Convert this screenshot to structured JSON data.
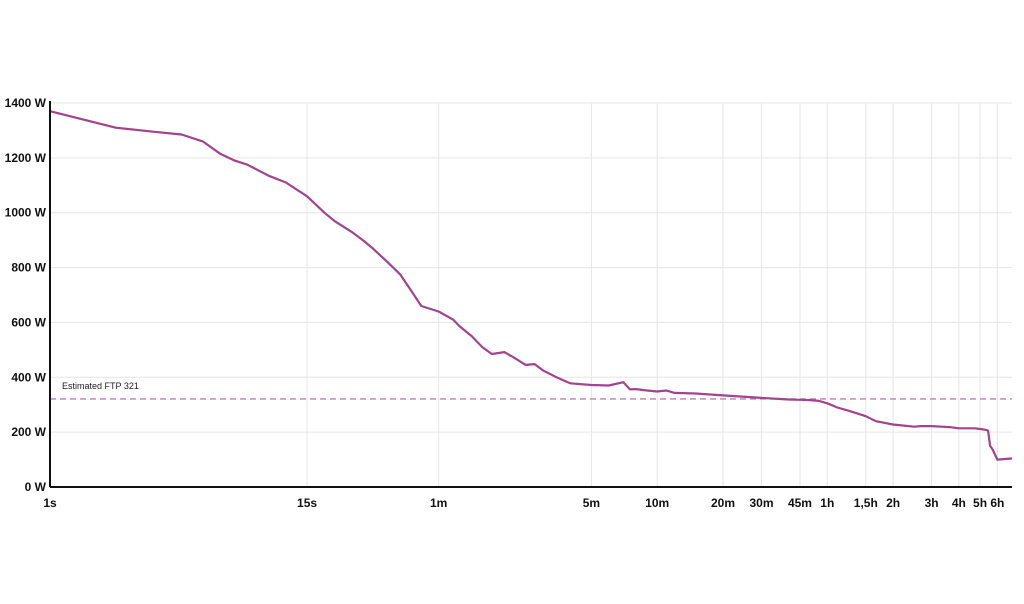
{
  "chart_data": {
    "type": "line",
    "x_scale": "log",
    "grid": true,
    "ylim": [
      0,
      1400
    ],
    "xlim_seconds": [
      1,
      25200
    ],
    "y_ticks": [
      {
        "value": 0,
        "label": "0 W"
      },
      {
        "value": 200,
        "label": "200 W"
      },
      {
        "value": 400,
        "label": "400 W"
      },
      {
        "value": 600,
        "label": "600 W"
      },
      {
        "value": 800,
        "label": "800 W"
      },
      {
        "value": 1000,
        "label": "1000 W"
      },
      {
        "value": 1200,
        "label": "1200 W"
      },
      {
        "value": 1400,
        "label": "1400 W"
      }
    ],
    "x_ticks": [
      {
        "value": 1,
        "label": "1s"
      },
      {
        "value": 15,
        "label": "15s"
      },
      {
        "value": 60,
        "label": "1m"
      },
      {
        "value": 300,
        "label": "5m"
      },
      {
        "value": 600,
        "label": "10m"
      },
      {
        "value": 1200,
        "label": "20m"
      },
      {
        "value": 1800,
        "label": "30m"
      },
      {
        "value": 2700,
        "label": "45m"
      },
      {
        "value": 3600,
        "label": "1h"
      },
      {
        "value": 5400,
        "label": "1,5h"
      },
      {
        "value": 7200,
        "label": "2h"
      },
      {
        "value": 10800,
        "label": "3h"
      },
      {
        "value": 14400,
        "label": "4h"
      },
      {
        "value": 18000,
        "label": "5h"
      },
      {
        "value": 21600,
        "label": "6h"
      }
    ],
    "series": [
      {
        "color": "#a2438f",
        "x": [
          1,
          2,
          3,
          4,
          5,
          6,
          7,
          8,
          10,
          12,
          15,
          18,
          20,
          24,
          27,
          30,
          35,
          40,
          45,
          50,
          60,
          70,
          75,
          85,
          95,
          105,
          120,
          135,
          150,
          165,
          180,
          210,
          240,
          300,
          360,
          420,
          450,
          480,
          540,
          600,
          660,
          720,
          900,
          1200,
          1800,
          2400,
          2700,
          3000,
          3300,
          3600,
          4000,
          4500,
          5400,
          6000,
          7200,
          9000,
          9600,
          10800,
          13200,
          14400,
          17000,
          18600,
          19200,
          19600,
          20000,
          20500,
          21600,
          25000
        ],
        "y": [
          1370,
          1310,
          1295,
          1285,
          1260,
          1215,
          1190,
          1175,
          1135,
          1110,
          1060,
          1000,
          970,
          930,
          900,
          870,
          820,
          775,
          715,
          660,
          640,
          610,
          585,
          550,
          510,
          485,
          492,
          468,
          445,
          448,
          425,
          398,
          378,
          372,
          370,
          382,
          356,
          357,
          352,
          348,
          352,
          343,
          341,
          334,
          325,
          319,
          318,
          317,
          314,
          305,
          290,
          278,
          258,
          240,
          228,
          220,
          222,
          222,
          218,
          214,
          214,
          210,
          208,
          205,
          150,
          138,
          100,
          104
        ]
      }
    ],
    "reference_line": {
      "value": 321,
      "label": "Estimated FTP 321",
      "color": "#c47bb9",
      "style": "dashed"
    }
  }
}
